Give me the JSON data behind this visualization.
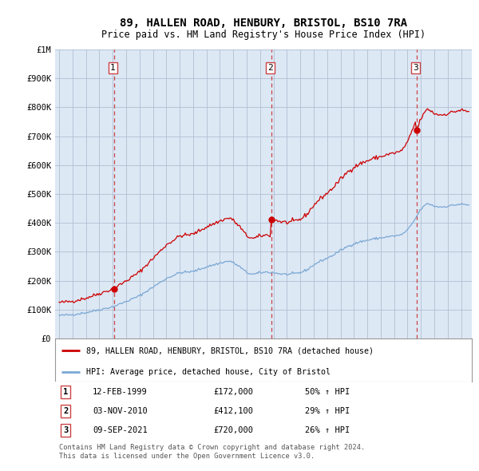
{
  "title": "89, HALLEN ROAD, HENBURY, BRISTOL, BS10 7RA",
  "subtitle": "Price paid vs. HM Land Registry's House Price Index (HPI)",
  "title_fontsize": 10,
  "subtitle_fontsize": 8.5,
  "ylim": [
    0,
    1000000
  ],
  "yticks": [
    0,
    100000,
    200000,
    300000,
    400000,
    500000,
    600000,
    700000,
    800000,
    900000,
    1000000
  ],
  "ytick_labels": [
    "£0",
    "£100K",
    "£200K",
    "£300K",
    "£400K",
    "£500K",
    "£600K",
    "£700K",
    "£800K",
    "£900K",
    "£1M"
  ],
  "xlim_start": 1994.7,
  "xlim_end": 2025.8,
  "chart_bg": "#dde8f5",
  "transactions": [
    {
      "date": 1999.12,
      "price": 172000,
      "label": "1"
    },
    {
      "date": 2010.84,
      "price": 412100,
      "label": "2"
    },
    {
      "date": 2021.69,
      "price": 720000,
      "label": "3"
    }
  ],
  "table_rows": [
    {
      "num": "1",
      "date": "12-FEB-1999",
      "price": "£172,000",
      "pct": "50% ↑ HPI"
    },
    {
      "num": "2",
      "date": "03-NOV-2010",
      "price": "£412,100",
      "pct": "29% ↑ HPI"
    },
    {
      "num": "3",
      "date": "09-SEP-2021",
      "price": "£720,000",
      "pct": "26% ↑ HPI"
    }
  ],
  "legend_line1": "89, HALLEN ROAD, HENBURY, BRISTOL, BS10 7RA (detached house)",
  "legend_line2": "HPI: Average price, detached house, City of Bristol",
  "footer_line1": "Contains HM Land Registry data © Crown copyright and database right 2024.",
  "footer_line2": "This data is licensed under the Open Government Licence v3.0.",
  "red_color": "#cc0000",
  "blue_color": "#7aa8d4",
  "vline_color": "#cc4444",
  "background_color": "#ffffff",
  "grid_color": "#b0bfd0"
}
